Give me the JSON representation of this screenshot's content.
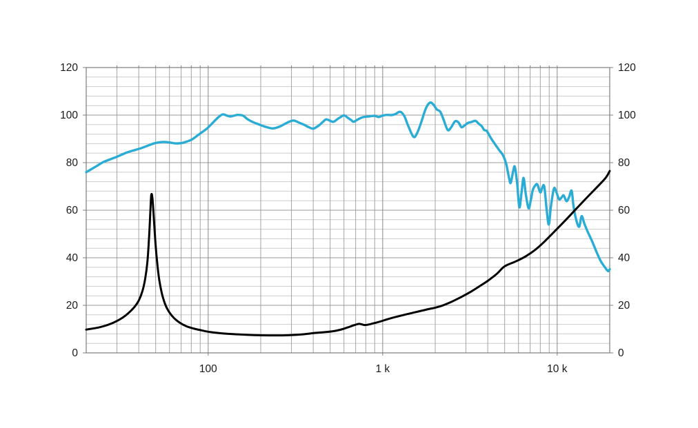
{
  "chart_data": {
    "type": "line",
    "title": "",
    "x_axis": {
      "scale": "log",
      "min": 20,
      "max": 20000,
      "ticks": [
        {
          "v": 100,
          "label": "100"
        },
        {
          "v": 1000,
          "label": "1 k"
        },
        {
          "v": 10000,
          "label": "10 k"
        }
      ]
    },
    "y_axis": {
      "min": 0,
      "max": 120,
      "major_step": 20,
      "minor_step": 4,
      "sides": "both",
      "ticks": [
        {
          "v": 0,
          "label": "0"
        },
        {
          "v": 20,
          "label": "20"
        },
        {
          "v": 40,
          "label": "40"
        },
        {
          "v": 60,
          "label": "60"
        },
        {
          "v": 80,
          "label": "80"
        },
        {
          "v": 100,
          "label": "100"
        },
        {
          "v": 120,
          "label": "120"
        }
      ]
    },
    "grid": {
      "minor_h_color": "#cccccc",
      "major_h_color": "#9a9a9a",
      "minor_v_color": "#a3a3a3",
      "major_v_color": "#878787",
      "border_color": "#7d7d7d",
      "tick_color": "#7d7d7d",
      "label_color": "#1a1a1a",
      "background": "#ffffff"
    },
    "series": [
      {
        "name": "frequency-response-spl",
        "color": "#2aacd5",
        "width": 3.4,
        "points": [
          [
            20,
            76
          ],
          [
            23,
            78.6
          ],
          [
            25,
            80.2
          ],
          [
            27,
            81.2
          ],
          [
            30,
            82.5
          ],
          [
            34,
            84.2
          ],
          [
            38,
            85.3
          ],
          [
            42,
            86.3
          ],
          [
            46,
            87.4
          ],
          [
            50,
            88.3
          ],
          [
            55,
            88.7
          ],
          [
            60,
            88.5
          ],
          [
            65,
            88.1
          ],
          [
            70,
            88.2
          ],
          [
            75,
            88.8
          ],
          [
            80,
            89.6
          ],
          [
            85,
            90.9
          ],
          [
            90,
            92.3
          ],
          [
            95,
            93.5
          ],
          [
            100,
            94.8
          ],
          [
            107,
            97
          ],
          [
            114,
            99
          ],
          [
            121,
            100.3
          ],
          [
            128,
            99.8
          ],
          [
            134,
            99.4
          ],
          [
            141,
            99.8
          ],
          [
            148,
            100.1
          ],
          [
            158,
            99.8
          ],
          [
            168,
            98.3
          ],
          [
            180,
            97.1
          ],
          [
            195,
            96.1
          ],
          [
            215,
            95
          ],
          [
            235,
            94.4
          ],
          [
            255,
            95.1
          ],
          [
            275,
            96.3
          ],
          [
            295,
            97.4
          ],
          [
            311,
            97.7
          ],
          [
            330,
            96.9
          ],
          [
            355,
            95.9
          ],
          [
            375,
            95
          ],
          [
            400,
            94.3
          ],
          [
            430,
            95.6
          ],
          [
            455,
            97.2
          ],
          [
            475,
            98.2
          ],
          [
            500,
            97.6
          ],
          [
            523,
            97.2
          ],
          [
            550,
            98.3
          ],
          [
            575,
            99.2
          ],
          [
            601,
            99.9
          ],
          [
            630,
            98.9
          ],
          [
            660,
            97.9
          ],
          [
            681,
            97.2
          ],
          [
            710,
            97.9
          ],
          [
            740,
            98.6
          ],
          [
            768,
            99.1
          ],
          [
            800,
            99.3
          ],
          [
            850,
            99.5
          ],
          [
            900,
            99.7
          ],
          [
            950,
            99.2
          ],
          [
            1000,
            99.8
          ],
          [
            1060,
            100.1
          ],
          [
            1120,
            100
          ],
          [
            1180,
            100.4
          ],
          [
            1260,
            101.4
          ],
          [
            1330,
            99.6
          ],
          [
            1400,
            95.5
          ],
          [
            1500,
            90.9
          ],
          [
            1570,
            92.2
          ],
          [
            1660,
            96.8
          ],
          [
            1760,
            102.5
          ],
          [
            1860,
            105.2
          ],
          [
            1950,
            104.5
          ],
          [
            2040,
            102.4
          ],
          [
            2140,
            101.4
          ],
          [
            2240,
            97.8
          ],
          [
            2360,
            93.7
          ],
          [
            2470,
            94.9
          ],
          [
            2600,
            97.4
          ],
          [
            2720,
            96.9
          ],
          [
            2830,
            94.9
          ],
          [
            2950,
            95.7
          ],
          [
            3080,
            96.7
          ],
          [
            3230,
            97.1
          ],
          [
            3400,
            97.6
          ],
          [
            3550,
            96.4
          ],
          [
            3700,
            95.3
          ],
          [
            3820,
            93.7
          ],
          [
            3950,
            93.3
          ],
          [
            4150,
            90.6
          ],
          [
            4400,
            87.8
          ],
          [
            4650,
            85.3
          ],
          [
            4900,
            83
          ],
          [
            5100,
            79.5
          ],
          [
            5300,
            73.5
          ],
          [
            5420,
            71.5
          ],
          [
            5600,
            76.5
          ],
          [
            5720,
            78.2
          ],
          [
            5900,
            71
          ],
          [
            6070,
            61.2
          ],
          [
            6250,
            67.5
          ],
          [
            6420,
            73.6
          ],
          [
            6600,
            67
          ],
          [
            6850,
            60.8
          ],
          [
            7050,
            64
          ],
          [
            7250,
            68.5
          ],
          [
            7500,
            70.5
          ],
          [
            7700,
            70.8
          ],
          [
            8000,
            67.5
          ],
          [
            8200,
            69.3
          ],
          [
            8430,
            70
          ],
          [
            8700,
            60.5
          ],
          [
            8950,
            54
          ],
          [
            9200,
            61.5
          ],
          [
            9570,
            69
          ],
          [
            9850,
            68
          ],
          [
            10250,
            64.6
          ],
          [
            10600,
            65.4
          ],
          [
            10900,
            66.2
          ],
          [
            11300,
            63.8
          ],
          [
            11700,
            65.5
          ],
          [
            12100,
            68.2
          ],
          [
            12400,
            61.8
          ],
          [
            12800,
            56.5
          ],
          [
            13350,
            53
          ],
          [
            13800,
            57.5
          ],
          [
            14300,
            54.5
          ],
          [
            14900,
            51.2
          ],
          [
            15800,
            47.2
          ],
          [
            16800,
            42.5
          ],
          [
            17800,
            38.5
          ],
          [
            18700,
            36.2
          ],
          [
            19300,
            34.8
          ],
          [
            19700,
            34.4
          ],
          [
            20000,
            35.2
          ]
        ]
      },
      {
        "name": "impedance",
        "color": "#000000",
        "width": 3,
        "points": [
          [
            20,
            9.8
          ],
          [
            24,
            10.8
          ],
          [
            28,
            12.4
          ],
          [
            32,
            14.6
          ],
          [
            35,
            16.8
          ],
          [
            38,
            19.5
          ],
          [
            40,
            22
          ],
          [
            42,
            26
          ],
          [
            43.5,
            31
          ],
          [
            44.8,
            38
          ],
          [
            45.8,
            48
          ],
          [
            46.6,
            59
          ],
          [
            47.2,
            66.4
          ],
          [
            47.9,
            65
          ],
          [
            48.8,
            57
          ],
          [
            49.8,
            47
          ],
          [
            51,
            38
          ],
          [
            52.5,
            30.5
          ],
          [
            54.5,
            24.5
          ],
          [
            57,
            20
          ],
          [
            60,
            17
          ],
          [
            64,
            14.5
          ],
          [
            69,
            12.6
          ],
          [
            75,
            11.2
          ],
          [
            82,
            10.3
          ],
          [
            90,
            9.6
          ],
          [
            100,
            8.9
          ],
          [
            113,
            8.4
          ],
          [
            130,
            8
          ],
          [
            155,
            7.7
          ],
          [
            185,
            7.45
          ],
          [
            220,
            7.35
          ],
          [
            260,
            7.35
          ],
          [
            300,
            7.5
          ],
          [
            360,
            7.9
          ],
          [
            410,
            8.4
          ],
          [
            460,
            8.7
          ],
          [
            510,
            9
          ],
          [
            570,
            9.7
          ],
          [
            630,
            10.7
          ],
          [
            690,
            11.7
          ],
          [
            735,
            12.2
          ],
          [
            790,
            11.7
          ],
          [
            850,
            12.1
          ],
          [
            950,
            13
          ],
          [
            1050,
            14
          ],
          [
            1200,
            15.2
          ],
          [
            1400,
            16.4
          ],
          [
            1600,
            17.4
          ],
          [
            1830,
            18.4
          ],
          [
            2000,
            19
          ],
          [
            2200,
            19.9
          ],
          [
            2500,
            21.6
          ],
          [
            2800,
            23.4
          ],
          [
            3200,
            25.7
          ],
          [
            3600,
            28.1
          ],
          [
            4000,
            30.3
          ],
          [
            4500,
            33.2
          ],
          [
            5000,
            36.4
          ],
          [
            5800,
            38.5
          ],
          [
            6600,
            40.6
          ],
          [
            7500,
            43.4
          ],
          [
            8400,
            46.6
          ],
          [
            9600,
            50.9
          ],
          [
            11000,
            55.3
          ],
          [
            12600,
            59.9
          ],
          [
            14400,
            64.4
          ],
          [
            16500,
            68.9
          ],
          [
            18900,
            73.5
          ],
          [
            20000,
            76.5
          ]
        ]
      }
    ]
  }
}
